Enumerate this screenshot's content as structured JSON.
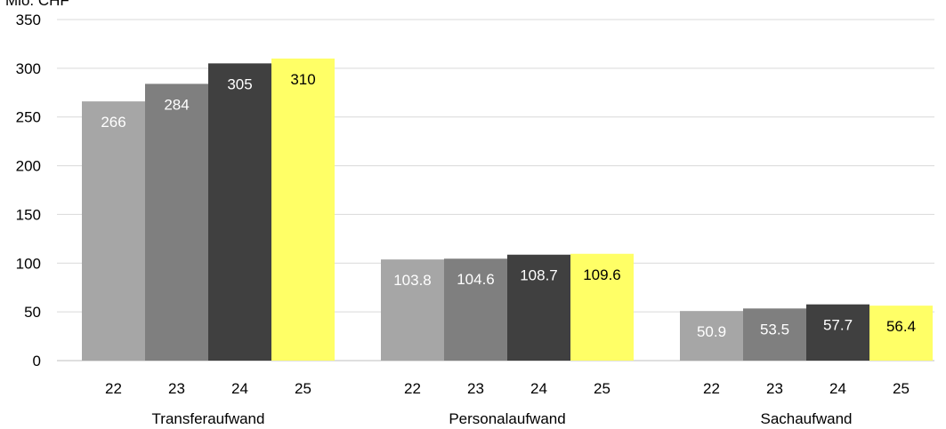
{
  "chart_data": {
    "type": "bar",
    "ylabel": "Mio. CHF",
    "ylim": [
      0,
      350
    ],
    "yticks": [
      0,
      50,
      100,
      150,
      200,
      250,
      300,
      350
    ],
    "grid": true,
    "groups": [
      {
        "label": "Transferaufwand",
        "categories": [
          "22",
          "23",
          "24",
          "25"
        ],
        "values": [
          266,
          284,
          305,
          310
        ],
        "value_labels": [
          "266",
          "284",
          "305",
          "310"
        ]
      },
      {
        "label": "Personalaufwand",
        "categories": [
          "22",
          "23",
          "24",
          "25"
        ],
        "values": [
          103.8,
          104.6,
          108.7,
          109.6
        ],
        "value_labels": [
          "103.8",
          "104.6",
          "108.7",
          "109.6"
        ]
      },
      {
        "label": "Sachaufwand",
        "categories": [
          "22",
          "23",
          "24",
          "25"
        ],
        "values": [
          50.9,
          53.5,
          57.7,
          56.4
        ],
        "value_labels": [
          "50.9",
          "53.5",
          "57.7",
          "56.4"
        ]
      }
    ],
    "bar_colors": [
      "#a6a6a6",
      "#7f7f7f",
      "#404040",
      "#ffff66"
    ],
    "value_label_colors": [
      "#ffffff",
      "#ffffff",
      "#ffffff",
      "#000000"
    ]
  }
}
